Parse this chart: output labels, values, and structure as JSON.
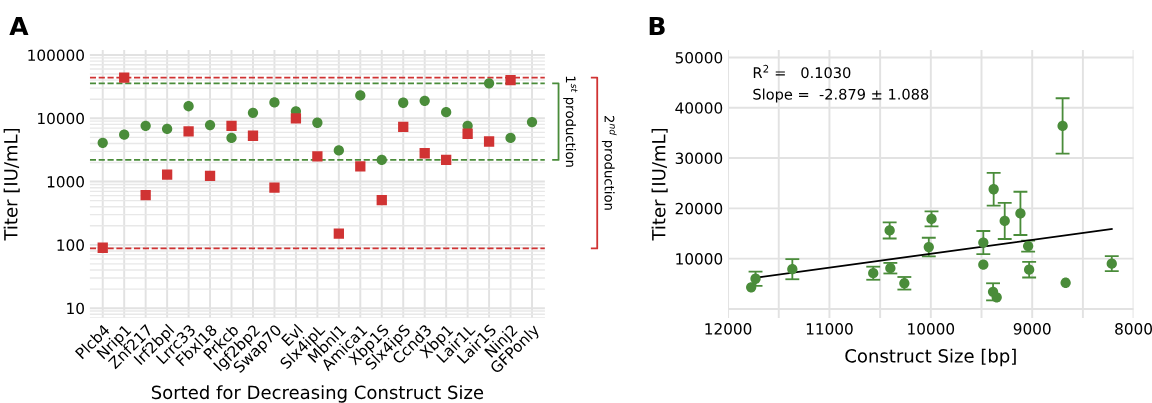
{
  "chart_data": [
    {
      "type": "scatter",
      "title": "A",
      "xlabel": "Sorted for Decreasing Construct Size",
      "ylabel": "Titer [IU/mL]",
      "categories": [
        "Plcb4",
        "Nrip1",
        "Znf217",
        "Irf2bpl",
        "Lrrc33",
        "Fbxl18",
        "Prkcb",
        "Igf2bp2",
        "Swap70",
        "Evl",
        "Slx4ipL",
        "Mbnl1",
        "Amica1",
        "Xbp1S",
        "Slx4ipS",
        "Ccnd3",
        "Xbp1",
        "Lair1L",
        "Lair1S",
        "Ninj2",
        "GFPonly"
      ],
      "series": [
        {
          "color": "#4a8c3a",
          "marker": "circle",
          "values": [
            4100,
            5500,
            7600,
            6800,
            15500,
            7800,
            4900,
            12200,
            17800,
            12900,
            8500,
            3100,
            23000,
            2200,
            17600,
            18900,
            12500,
            7600,
            35700,
            4900,
            8700
          ]
        },
        {
          "color": "#d03333",
          "marker": "square",
          "values": [
            90,
            44000,
            610,
            1290,
            6200,
            1230,
            7600,
            5300,
            800,
            10000,
            2500,
            150,
            1740,
            510,
            7300,
            2800,
            2200,
            5700,
            4300,
            40000,
            null
          ]
        }
      ],
      "log": "y",
      "ylim": [
        7,
        120000
      ],
      "yticks": [
        10,
        100,
        1000,
        10000,
        100000
      ],
      "grid": true,
      "ref_lines": [
        {
          "axis": "y",
          "value": 44000,
          "color": "#d03333",
          "line_style": "dashed"
        },
        {
          "axis": "y",
          "value": 35700,
          "color": "#4a8c3a",
          "line_style": "dashed"
        },
        {
          "axis": "y",
          "value": 2200,
          "color": "#4a8c3a",
          "line_style": "dashed"
        },
        {
          "axis": "y",
          "value": 88,
          "color": "#d03333",
          "line_style": "dashed"
        }
      ],
      "annotations": [
        "1$^{st}$ production",
        "2$^{nd}$ production"
      ]
    },
    {
      "type": "scatter",
      "title": "B",
      "xlabel": "Construct Size [bp]",
      "ylabel": "Titer [IU/mL]",
      "series": [
        {
          "color": "#4a8c3a",
          "marker": "circle",
          "x": [
            11772,
            11729,
            11366,
            10568,
            10406,
            10399,
            10261,
            10020,
            9993,
            9482,
            9482,
            9380,
            9386,
            9350,
            9271,
            9116,
            9040,
            9030,
            8700,
            8670,
            8215
          ],
          "values": [
            4300,
            6000,
            7900,
            7100,
            15600,
            8100,
            5100,
            12300,
            17900,
            13200,
            8800,
            23800,
            3400,
            2300,
            17500,
            19000,
            12500,
            7800,
            36400,
            5200,
            9000
          ],
          "errors": [
            null,
            1400,
            2000,
            1300,
            1600,
            1050,
            1250,
            1850,
            1500,
            2300,
            null,
            3250,
            1700,
            null,
            3600,
            4300,
            1100,
            1550,
            5500,
            null,
            1500
          ]
        },
        {
          "type": "line",
          "color": "#000000",
          "x": [
            11729,
            8215
          ],
          "values": [
            6200,
            15900
          ]
        }
      ],
      "xlim": [
        12000,
        8000
      ],
      "xticks": [
        12000,
        {
          "value": 11500,
          "label": null
        },
        11000,
        {
          "value": 10500,
          "label": null
        },
        10000,
        {
          "value": 9500,
          "label": null
        },
        9000,
        {
          "value": 8500,
          "label": null
        },
        8000
      ],
      "ylim": [
        -1800,
        51500
      ],
      "yticks": [
        {
          "value": 0,
          "label": null
        },
        10000,
        20000,
        30000,
        40000,
        50000
      ],
      "grid": true,
      "annotations": [
        "R$^{2}$ =   0.1030",
        "Slope =  -2.879 ± 1.088"
      ]
    }
  ]
}
